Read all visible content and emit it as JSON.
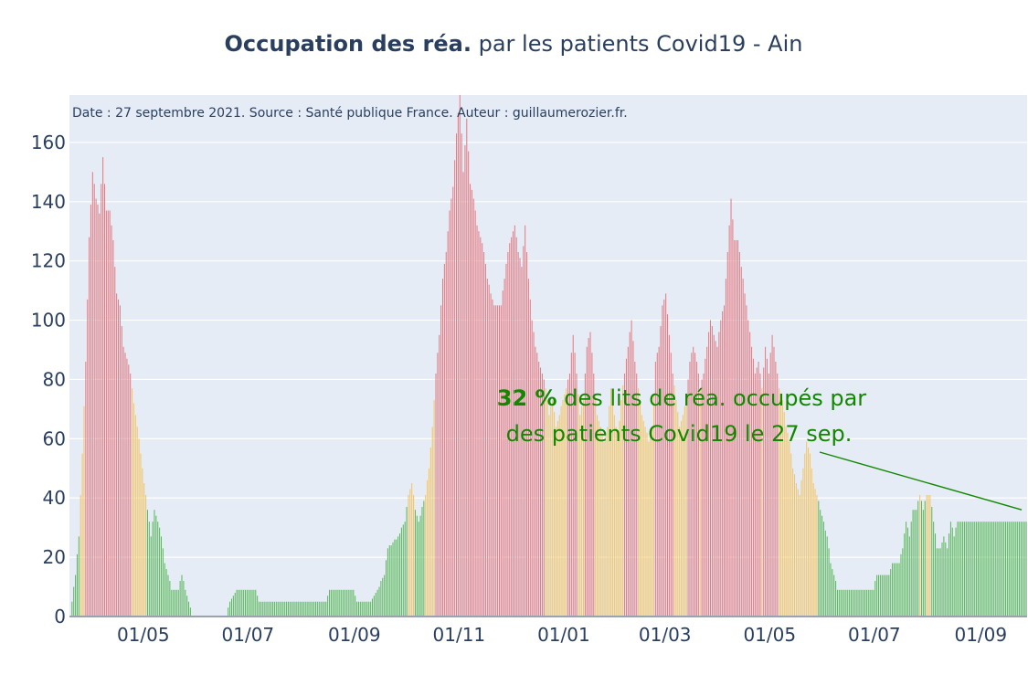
{
  "chart_data": {
    "type": "bar",
    "title_bold": "Occupation des réa.",
    "title_rest": " par les patients Covid19 - Ain",
    "source_note": "Date : 27 septembre 2021. Source : Santé publique France. Auteur : guillaumerozier.fr.",
    "x_start": "2020-03-19",
    "x_end": "2021-09-27",
    "ylim": [
      0,
      176
    ],
    "yticks": [
      0,
      20,
      40,
      60,
      80,
      100,
      120,
      140,
      160
    ],
    "xticks": [
      {
        "date": "2020-05-01",
        "label": "01/05"
      },
      {
        "date": "2020-07-01",
        "label": "01/07"
      },
      {
        "date": "2020-09-01",
        "label": "01/09"
      },
      {
        "date": "2020-11-01",
        "label": "01/11"
      },
      {
        "date": "2021-01-01",
        "label": "01/01"
      },
      {
        "date": "2021-03-01",
        "label": "01/03"
      },
      {
        "date": "2021-05-01",
        "label": "01/05"
      },
      {
        "date": "2021-07-01",
        "label": "01/07"
      },
      {
        "date": "2021-09-01",
        "label": "01/09"
      }
    ],
    "colors": {
      "green": "#5cb85c",
      "orange": "#f3c465",
      "red": "#e47c84",
      "annotation": "#118800",
      "plot_bg": "#e5ecf6"
    },
    "thresholds": {
      "orange_from": 40,
      "red_from": 80
    },
    "keyframes": [
      [
        "2020-03-19",
        0
      ],
      [
        "2020-03-20",
        5
      ],
      [
        "2020-03-22",
        14
      ],
      [
        "2020-03-24",
        27
      ],
      [
        "2020-03-26",
        55
      ],
      [
        "2020-03-28",
        86
      ],
      [
        "2020-03-30",
        128
      ],
      [
        "2020-04-01",
        150
      ],
      [
        "2020-04-03",
        141
      ],
      [
        "2020-04-05",
        136
      ],
      [
        "2020-04-07",
        155
      ],
      [
        "2020-04-09",
        137
      ],
      [
        "2020-04-11",
        137
      ],
      [
        "2020-04-13",
        127
      ],
      [
        "2020-04-15",
        109
      ],
      [
        "2020-04-17",
        105
      ],
      [
        "2020-04-19",
        91
      ],
      [
        "2020-04-21",
        87
      ],
      [
        "2020-04-23",
        82
      ],
      [
        "2020-04-25",
        72
      ],
      [
        "2020-04-27",
        64
      ],
      [
        "2020-04-29",
        55
      ],
      [
        "2020-05-01",
        45
      ],
      [
        "2020-05-03",
        36
      ],
      [
        "2020-05-05",
        27
      ],
      [
        "2020-05-07",
        36
      ],
      [
        "2020-05-09",
        32
      ],
      [
        "2020-05-11",
        27
      ],
      [
        "2020-05-13",
        18
      ],
      [
        "2020-05-15",
        14
      ],
      [
        "2020-05-17",
        9
      ],
      [
        "2020-05-21",
        9
      ],
      [
        "2020-05-23",
        14
      ],
      [
        "2020-05-25",
        9
      ],
      [
        "2020-05-27",
        5
      ],
      [
        "2020-05-29",
        0
      ],
      [
        "2020-06-18",
        0
      ],
      [
        "2020-06-20",
        5
      ],
      [
        "2020-06-24",
        9
      ],
      [
        "2020-07-05",
        9
      ],
      [
        "2020-07-07",
        5
      ],
      [
        "2020-08-15",
        5
      ],
      [
        "2020-08-17",
        9
      ],
      [
        "2020-08-31",
        9
      ],
      [
        "2020-09-02",
        5
      ],
      [
        "2020-09-10",
        5
      ],
      [
        "2020-09-14",
        9
      ],
      [
        "2020-09-18",
        14
      ],
      [
        "2020-09-20",
        23
      ],
      [
        "2020-09-26",
        27
      ],
      [
        "2020-09-30",
        32
      ],
      [
        "2020-10-02",
        41
      ],
      [
        "2020-10-04",
        45
      ],
      [
        "2020-10-06",
        36
      ],
      [
        "2020-10-08",
        32
      ],
      [
        "2020-10-12",
        41
      ],
      [
        "2020-10-14",
        50
      ],
      [
        "2020-10-16",
        64
      ],
      [
        "2020-10-18",
        82
      ],
      [
        "2020-10-20",
        95
      ],
      [
        "2020-10-22",
        114
      ],
      [
        "2020-10-24",
        123
      ],
      [
        "2020-10-26",
        137
      ],
      [
        "2020-10-28",
        145
      ],
      [
        "2020-10-30",
        163
      ],
      [
        "2020-11-01",
        176
      ],
      [
        "2020-11-03",
        150
      ],
      [
        "2020-11-05",
        168
      ],
      [
        "2020-11-07",
        146
      ],
      [
        "2020-11-09",
        141
      ],
      [
        "2020-11-11",
        132
      ],
      [
        "2020-11-13",
        128
      ],
      [
        "2020-11-15",
        123
      ],
      [
        "2020-11-17",
        114
      ],
      [
        "2020-11-19",
        109
      ],
      [
        "2020-11-21",
        105
      ],
      [
        "2020-11-25",
        105
      ],
      [
        "2020-11-27",
        114
      ],
      [
        "2020-11-29",
        123
      ],
      [
        "2020-12-01",
        128
      ],
      [
        "2020-12-03",
        132
      ],
      [
        "2020-12-05",
        123
      ],
      [
        "2020-12-07",
        118
      ],
      [
        "2020-12-09",
        132
      ],
      [
        "2020-12-11",
        114
      ],
      [
        "2020-12-13",
        100
      ],
      [
        "2020-12-15",
        91
      ],
      [
        "2020-12-17",
        86
      ],
      [
        "2020-12-19",
        82
      ],
      [
        "2020-12-21",
        77
      ],
      [
        "2020-12-23",
        68
      ],
      [
        "2020-12-25",
        73
      ],
      [
        "2020-12-27",
        64
      ],
      [
        "2020-12-29",
        68
      ],
      [
        "2020-12-31",
        73
      ],
      [
        "2021-01-02",
        77
      ],
      [
        "2021-01-04",
        82
      ],
      [
        "2021-01-06",
        95
      ],
      [
        "2021-01-08",
        82
      ],
      [
        "2021-01-10",
        68
      ],
      [
        "2021-01-12",
        73
      ],
      [
        "2021-01-14",
        91
      ],
      [
        "2021-01-16",
        96
      ],
      [
        "2021-01-18",
        82
      ],
      [
        "2021-01-20",
        68
      ],
      [
        "2021-01-22",
        64
      ],
      [
        "2021-01-24",
        59
      ],
      [
        "2021-01-26",
        64
      ],
      [
        "2021-01-28",
        77
      ],
      [
        "2021-01-30",
        68
      ],
      [
        "2021-02-01",
        59
      ],
      [
        "2021-02-03",
        73
      ],
      [
        "2021-02-05",
        82
      ],
      [
        "2021-02-07",
        91
      ],
      [
        "2021-02-09",
        100
      ],
      [
        "2021-02-11",
        86
      ],
      [
        "2021-02-13",
        77
      ],
      [
        "2021-02-15",
        68
      ],
      [
        "2021-02-17",
        64
      ],
      [
        "2021-02-19",
        59
      ],
      [
        "2021-02-21",
        64
      ],
      [
        "2021-02-23",
        86
      ],
      [
        "2021-02-25",
        91
      ],
      [
        "2021-02-27",
        105
      ],
      [
        "2021-03-01",
        109
      ],
      [
        "2021-03-03",
        95
      ],
      [
        "2021-03-05",
        82
      ],
      [
        "2021-03-07",
        73
      ],
      [
        "2021-03-09",
        64
      ],
      [
        "2021-03-11",
        68
      ],
      [
        "2021-03-13",
        73
      ],
      [
        "2021-03-15",
        86
      ],
      [
        "2021-03-17",
        91
      ],
      [
        "2021-03-19",
        86
      ],
      [
        "2021-03-21",
        77
      ],
      [
        "2021-03-23",
        82
      ],
      [
        "2021-03-25",
        91
      ],
      [
        "2021-03-27",
        100
      ],
      [
        "2021-03-29",
        95
      ],
      [
        "2021-03-31",
        91
      ],
      [
        "2021-04-02",
        100
      ],
      [
        "2021-04-04",
        105
      ],
      [
        "2021-04-06",
        123
      ],
      [
        "2021-04-08",
        141
      ],
      [
        "2021-04-10",
        127
      ],
      [
        "2021-04-12",
        127
      ],
      [
        "2021-04-14",
        118
      ],
      [
        "2021-04-16",
        109
      ],
      [
        "2021-04-18",
        100
      ],
      [
        "2021-04-20",
        91
      ],
      [
        "2021-04-22",
        82
      ],
      [
        "2021-04-24",
        86
      ],
      [
        "2021-04-26",
        77
      ],
      [
        "2021-04-28",
        91
      ],
      [
        "2021-04-30",
        82
      ],
      [
        "2021-05-02",
        95
      ],
      [
        "2021-05-04",
        86
      ],
      [
        "2021-05-06",
        77
      ],
      [
        "2021-05-08",
        73
      ],
      [
        "2021-05-10",
        64
      ],
      [
        "2021-05-12",
        59
      ],
      [
        "2021-05-14",
        50
      ],
      [
        "2021-05-16",
        45
      ],
      [
        "2021-05-18",
        41
      ],
      [
        "2021-05-20",
        50
      ],
      [
        "2021-05-22",
        59
      ],
      [
        "2021-05-24",
        55
      ],
      [
        "2021-05-26",
        45
      ],
      [
        "2021-05-28",
        41
      ],
      [
        "2021-05-30",
        36
      ],
      [
        "2021-06-03",
        27
      ],
      [
        "2021-06-05",
        18
      ],
      [
        "2021-06-07",
        14
      ],
      [
        "2021-06-09",
        9
      ],
      [
        "2021-06-30",
        9
      ],
      [
        "2021-07-02",
        14
      ],
      [
        "2021-07-09",
        14
      ],
      [
        "2021-07-11",
        18
      ],
      [
        "2021-07-15",
        18
      ],
      [
        "2021-07-17",
        23
      ],
      [
        "2021-07-19",
        32
      ],
      [
        "2021-07-21",
        27
      ],
      [
        "2021-07-23",
        36
      ],
      [
        "2021-07-25",
        36
      ],
      [
        "2021-07-27",
        41
      ],
      [
        "2021-07-29",
        36
      ],
      [
        "2021-07-31",
        41
      ],
      [
        "2021-08-02",
        41
      ],
      [
        "2021-08-04",
        32
      ],
      [
        "2021-08-06",
        23
      ],
      [
        "2021-08-08",
        23
      ],
      [
        "2021-08-10",
        27
      ],
      [
        "2021-08-12",
        23
      ],
      [
        "2021-08-14",
        32
      ],
      [
        "2021-08-16",
        27
      ],
      [
        "2021-08-18",
        32
      ],
      [
        "2021-09-27",
        32
      ]
    ],
    "annotation": {
      "value_bold": "32  %",
      "line1_rest": " des lits de réa. occupés par",
      "line2": "des patients Covid19 le 27 sep.",
      "arrow_to_date": "2021-09-27",
      "arrow_to_value": 36
    }
  }
}
